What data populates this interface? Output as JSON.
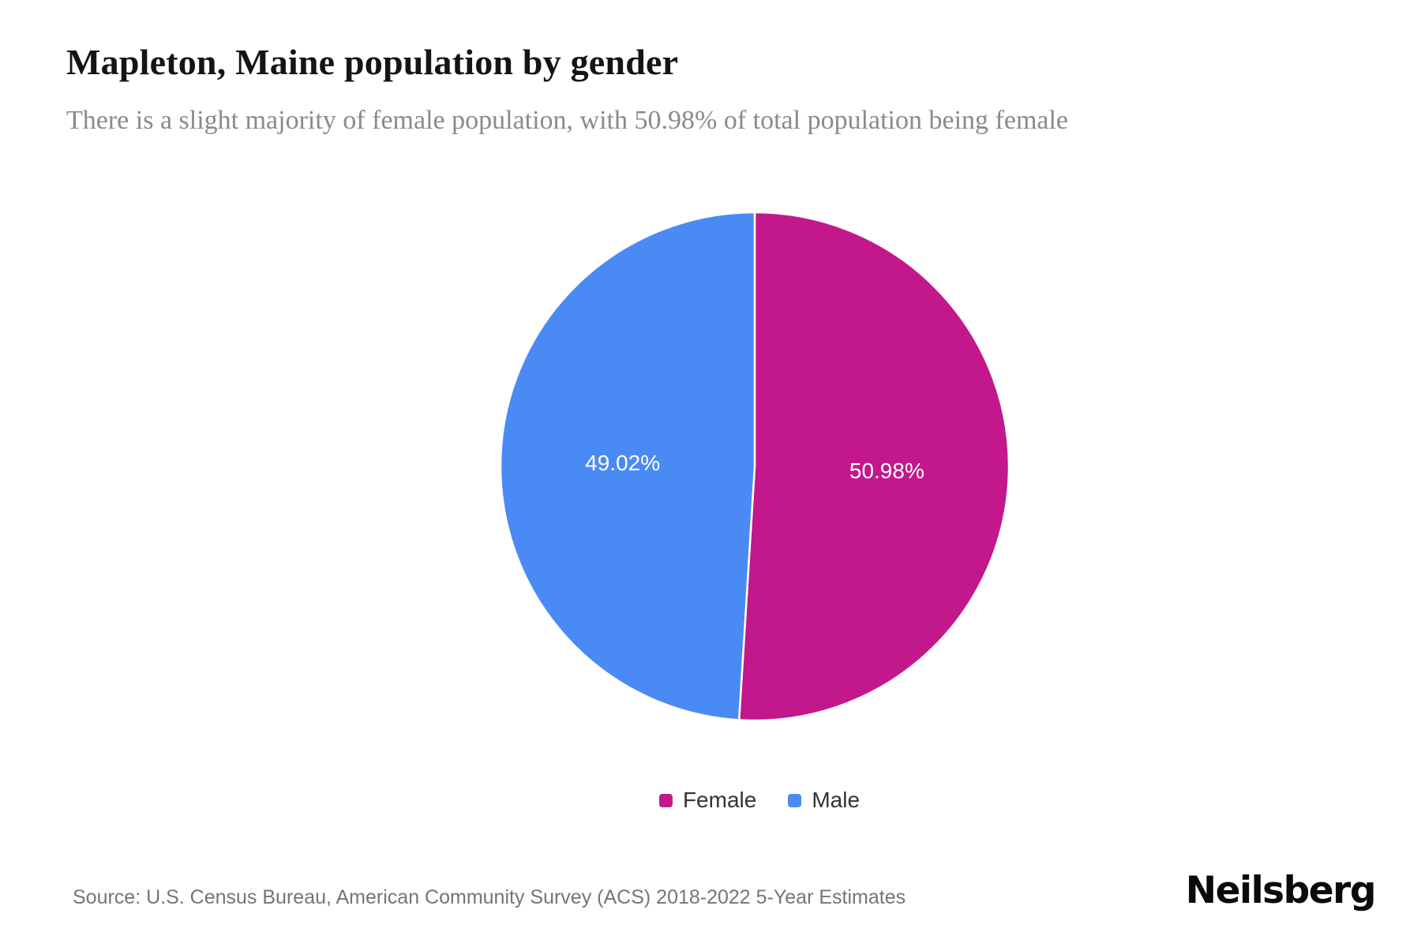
{
  "page": {
    "title": "Mapleton, Maine population by gender",
    "subtitle": "There is a slight majority of female population, with 50.98% of total population being female",
    "source": "Source: U.S. Census Bureau, American Community Survey (ACS) 2018-2022 5-Year Estimates",
    "brand": "Neilsberg"
  },
  "chart_data": {
    "type": "pie",
    "title": "Mapleton, Maine population by gender",
    "series": [
      {
        "name": "Female",
        "value": 50.98,
        "label": "50.98%",
        "color": "#C2188C"
      },
      {
        "name": "Male",
        "value": 49.02,
        "label": "49.02%",
        "color": "#4A8AF4"
      }
    ],
    "start_angle_deg": 0,
    "direction": "clockwise",
    "data_labels": "inside",
    "legend_position": "bottom",
    "background": "#ffffff"
  }
}
